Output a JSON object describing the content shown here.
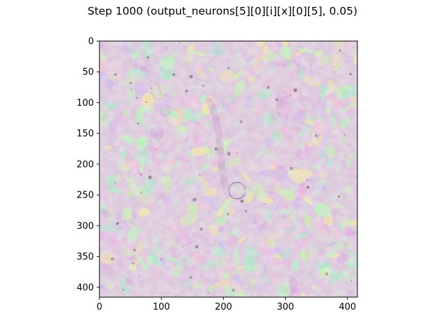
{
  "figure": {
    "title": "Step 1000 (output_neurons[5][0][i][x][0][5], 0.05)"
  },
  "image_plot": {
    "x_axis": {
      "range": [
        0,
        416
      ],
      "ticks": [
        0,
        100,
        200,
        300,
        400
      ],
      "tick_labels": [
        "0",
        "100",
        "200",
        "300",
        "400"
      ]
    },
    "y_axis": {
      "range": [
        416,
        0
      ],
      "ticks": [
        0,
        50,
        100,
        150,
        200,
        250,
        300,
        350,
        400
      ],
      "tick_labels": [
        "0",
        "50",
        "100",
        "150",
        "200",
        "250",
        "300",
        "350",
        "400"
      ]
    },
    "palette": [
      "#e9b3e3",
      "#b4f5b4",
      "#d9a8dc",
      "#c8f2a8",
      "#f0c0d8",
      "#a8e8c8",
      "#d0b8f0",
      "#f5e6a0"
    ]
  }
}
